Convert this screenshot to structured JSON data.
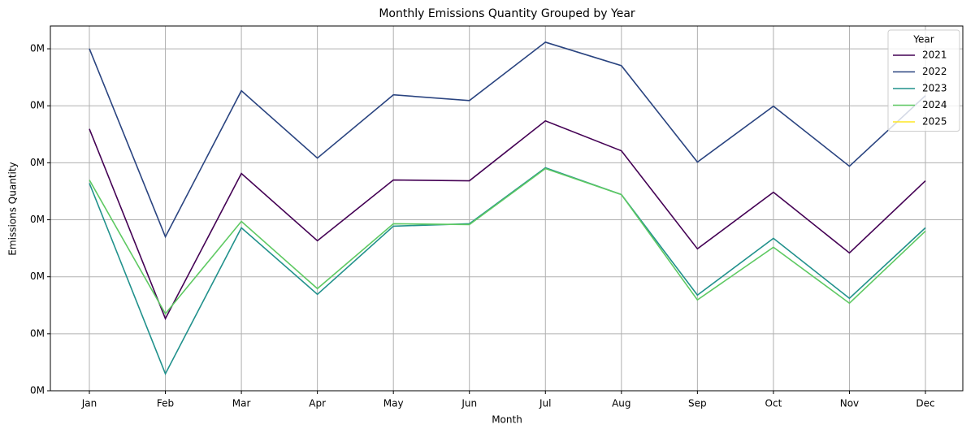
{
  "chart_data": {
    "type": "line",
    "title": "Monthly Emissions Quantity Grouped by Year",
    "x_label": "Month",
    "y_label": "Emissions Quantity",
    "categories": [
      "Jan",
      "Feb",
      "Mar",
      "Apr",
      "May",
      "Jun",
      "Jul",
      "Aug",
      "Sep",
      "Oct",
      "Nov",
      "Dec"
    ],
    "legend_title": "Year",
    "legend": "upper right",
    "grid": true,
    "ylim": [
      0,
      320000
    ],
    "yticks": [
      {
        "value": 0,
        "label": "0M"
      },
      {
        "value": 50000,
        "label": "0M"
      },
      {
        "value": 100000,
        "label": "0M"
      },
      {
        "value": 150000,
        "label": "0M"
      },
      {
        "value": 200000,
        "label": "0M"
      },
      {
        "value": 250000,
        "label": "0M"
      },
      {
        "value": 300000,
        "label": "0M"
      }
    ],
    "series": [
      {
        "name": "2021",
        "color": "#440154",
        "values": [
          229700,
          63300,
          190600,
          131600,
          184900,
          184200,
          236800,
          210500,
          124500,
          174200,
          120900,
          184200
        ]
      },
      {
        "name": "2022",
        "color": "#2a4480",
        "values": [
          300100,
          135100,
          263200,
          204100,
          259600,
          254600,
          305800,
          285200,
          200600,
          249600,
          197000,
          258900
        ]
      },
      {
        "name": "2023",
        "color": "#21918c",
        "values": [
          182100,
          14900,
          143000,
          84600,
          144400,
          146500,
          195600,
          172100,
          83900,
          133700,
          81100,
          143000
        ]
      },
      {
        "name": "2024",
        "color": "#5ec962",
        "values": [
          184900,
          67600,
          148600,
          89600,
          146500,
          145800,
          194900,
          172100,
          79700,
          125900,
          76800,
          140100
        ]
      },
      {
        "name": "2025",
        "color": "#fde725",
        "values": [
          null,
          null,
          null,
          null,
          null,
          null,
          null,
          null,
          null,
          null,
          null,
          null
        ]
      }
    ]
  }
}
